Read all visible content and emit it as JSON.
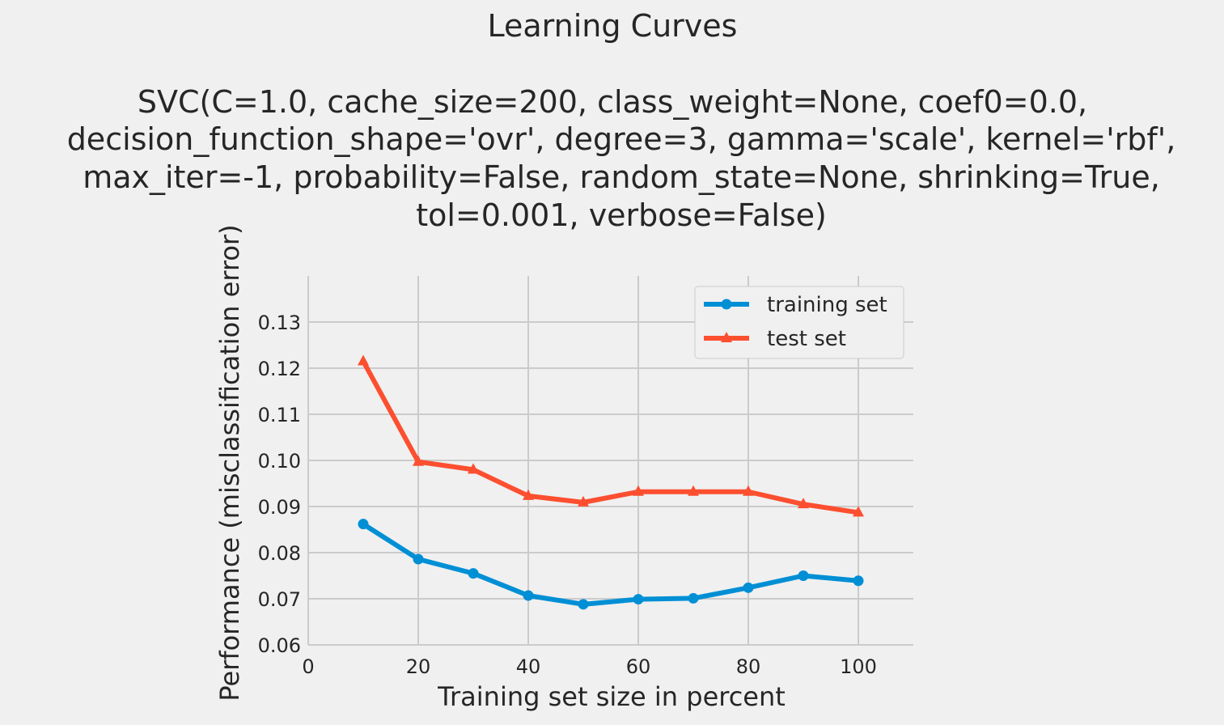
{
  "chart_data": {
    "type": "line",
    "title": "Learning Curves",
    "subtitle_lines": [
      "SVC(C=1.0, cache_size=200, class_weight=None, coef0=0.0,",
      "decision_function_shape='ovr', degree=3, gamma='scale', kernel='rbf',",
      "max_iter=-1, probability=False, random_state=None, shrinking=True,",
      "tol=0.001, verbose=False)"
    ],
    "xlabel": "Training set size in percent",
    "ylabel": "Performance (misclassification error)",
    "xlim": [
      0,
      110
    ],
    "ylim": [
      0.06,
      0.14
    ],
    "xticks": [
      0,
      20,
      40,
      60,
      80,
      100
    ],
    "xtick_labels": [
      "0",
      "20",
      "40",
      "60",
      "80",
      "100"
    ],
    "yticks": [
      0.06,
      0.07,
      0.08,
      0.09,
      0.1,
      0.11,
      0.12,
      0.13
    ],
    "ytick_labels": [
      "0.06",
      "0.07",
      "0.08",
      "0.09",
      "0.10",
      "0.11",
      "0.12",
      "0.13"
    ],
    "grid": true,
    "legend_position": "upper right",
    "x": [
      10,
      20,
      30,
      40,
      50,
      60,
      70,
      80,
      90,
      100
    ],
    "series": [
      {
        "name": "training set",
        "color": "#008fd5",
        "marker": "circle",
        "values": [
          0.0862,
          0.0786,
          0.0755,
          0.0707,
          0.0688,
          0.0699,
          0.0701,
          0.0724,
          0.075,
          0.0739
        ]
      },
      {
        "name": "test set",
        "color": "#fc4f30",
        "marker": "triangle",
        "values": [
          0.1215,
          0.0997,
          0.098,
          0.0923,
          0.0909,
          0.0932,
          0.0932,
          0.0932,
          0.0905,
          0.0887
        ]
      }
    ]
  }
}
